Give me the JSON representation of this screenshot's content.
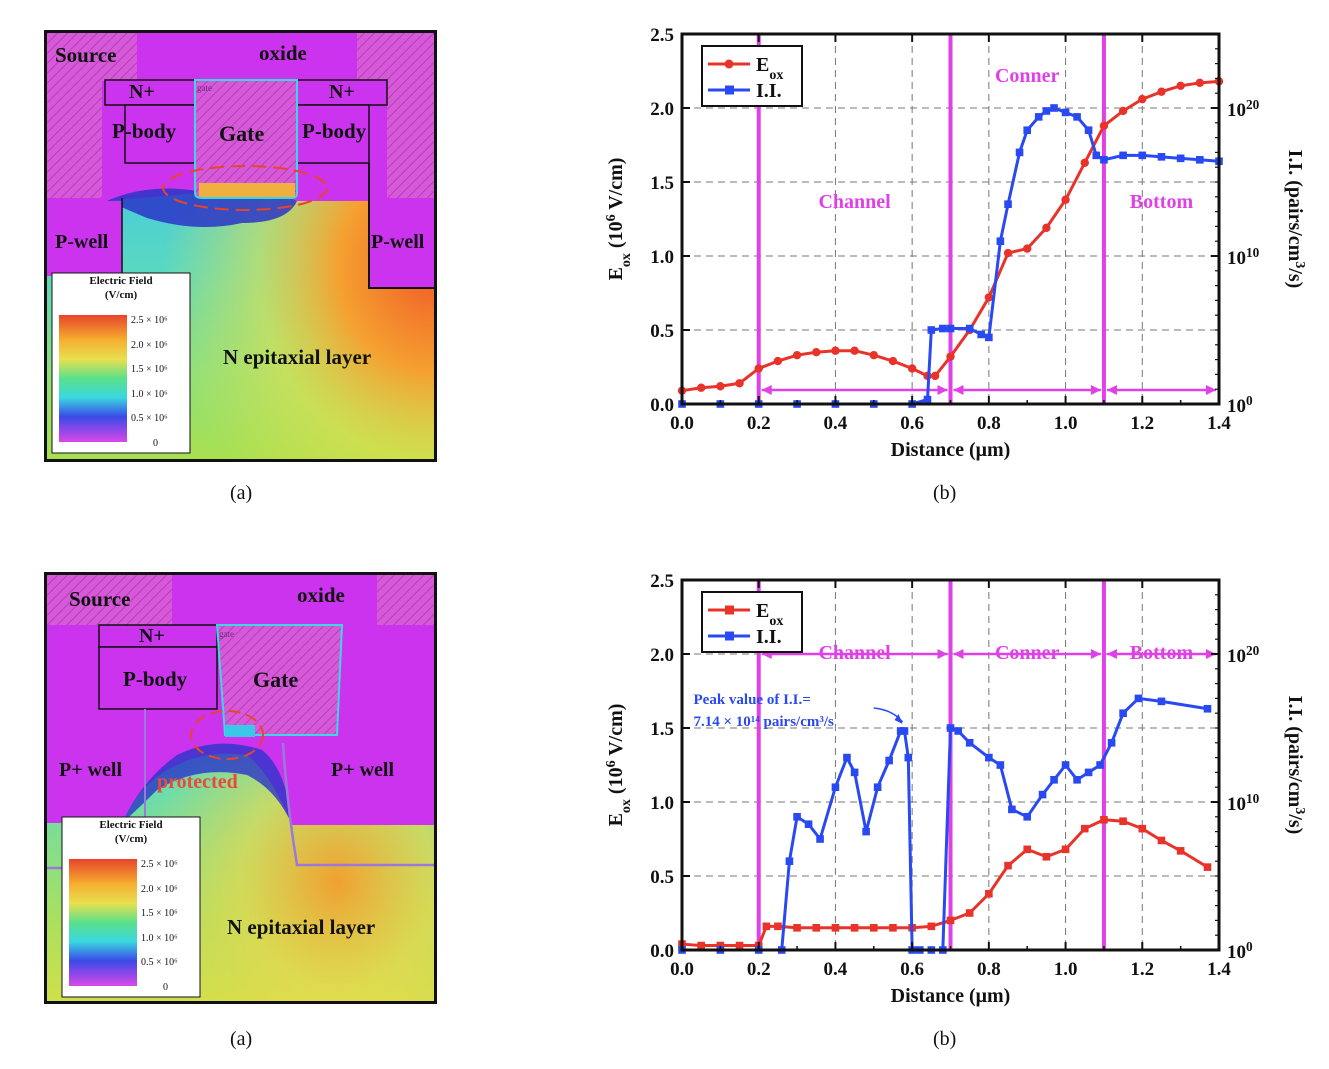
{
  "colors": {
    "red_series": "#e8332a",
    "blue_series": "#2949f2",
    "magenta": "#e040e8",
    "sim_purple": "#cc33ee",
    "protected_text": "#e84a3a"
  },
  "figures": [
    {
      "caption_a": "(a)",
      "caption_b": "(b)",
      "sim": {
        "labels": {
          "source": "Source",
          "oxide": "oxide",
          "n_plus_left": "N+",
          "n_plus_right": "N+",
          "gate_small": "gate",
          "gate": "Gate",
          "p_body_left": "P-body",
          "p_body_right": "P-body",
          "p_well_left": "P-well",
          "p_well_right": "P-well",
          "epi": "N epitaxial layer"
        },
        "legend": {
          "title": "Electric Field",
          "unit": "(V/cm)",
          "ticks": [
            "2.5 × 10⁶",
            "2.0 × 10⁶",
            "1.5 × 10⁶",
            "1.0 × 10⁶",
            "0.5 × 10⁶",
            "0"
          ]
        }
      },
      "annotations": {
        "peak_line1": "",
        "peak_line2": ""
      },
      "regions": {
        "channel": "Channel",
        "corner": "Conner",
        "bottom": "Bottom"
      }
    },
    {
      "caption_a": "(a)",
      "caption_b": "(b)",
      "sim": {
        "labels": {
          "source": "Source",
          "oxide": "oxide",
          "n_plus_left": "N+",
          "gate_small": "gate",
          "gate": "Gate",
          "p_body_left": "P-body",
          "p_well_left": "P+ well",
          "p_well_right": "P+ well",
          "protected": "protected",
          "epi": "N epitaxial layer"
        },
        "legend": {
          "title": "Electric Field",
          "unit": "(V/cm)",
          "ticks": [
            "2.5 × 10⁶",
            "2.0 × 10⁶",
            "1.5 × 10⁶",
            "1.0 × 10⁶",
            "0.5 × 10⁶",
            "0"
          ]
        }
      },
      "annotations": {
        "peak_line1": "Peak value of I.I.=",
        "peak_line2": "7.14 × 10¹⁴ pairs/cm³/s"
      },
      "regions": {
        "channel": "Channel",
        "corner": "Conner",
        "bottom": "Bottom"
      }
    }
  ],
  "chart_data": [
    {
      "type": "line",
      "xlabel": "Distance (μm)",
      "ylabel": "E_ox (10^6 V/cm)",
      "ylabel2": "I.I. (pairs/cm^3/s)",
      "xlim": [
        0,
        1.4
      ],
      "ylim": [
        0,
        2.5
      ],
      "y2lim_log10": [
        0,
        25
      ],
      "x_ticks": [
        "0.0",
        "0.2",
        "0.4",
        "0.6",
        "0.8",
        "1.0",
        "1.2",
        "1.4"
      ],
      "y_ticks": [
        "0.0",
        "0.5",
        "1.0",
        "1.5",
        "2.0",
        "2.5"
      ],
      "y2_ticks": [
        {
          "base": "10",
          "exp": "0",
          "log": 0
        },
        {
          "base": "10",
          "exp": "10",
          "log": 10
        },
        {
          "base": "10",
          "exp": "20",
          "log": 20
        }
      ],
      "grid": true,
      "legend_position": "top-left",
      "region_boundaries": [
        0.2,
        0.7,
        1.1
      ],
      "series": [
        {
          "name": "E_ox",
          "axis": "left",
          "marker": "circle",
          "x": [
            0,
            0.05,
            0.1,
            0.15,
            0.2,
            0.25,
            0.3,
            0.35,
            0.4,
            0.45,
            0.5,
            0.55,
            0.6,
            0.64,
            0.66,
            0.7,
            0.75,
            0.8,
            0.85,
            0.9,
            0.95,
            1.0,
            1.05,
            1.1,
            1.15,
            1.2,
            1.25,
            1.3,
            1.35,
            1.4
          ],
          "y": [
            0.09,
            0.11,
            0.12,
            0.14,
            0.24,
            0.29,
            0.33,
            0.35,
            0.36,
            0.36,
            0.33,
            0.29,
            0.24,
            0.19,
            0.19,
            0.32,
            0.5,
            0.72,
            1.02,
            1.05,
            1.19,
            1.38,
            1.63,
            1.88,
            1.98,
            2.06,
            2.11,
            2.15,
            2.17,
            2.18
          ]
        },
        {
          "name": "I.I.",
          "axis": "right",
          "marker": "square",
          "x": [
            0,
            0.1,
            0.2,
            0.3,
            0.4,
            0.5,
            0.6,
            0.64,
            0.65,
            0.68,
            0.7,
            0.75,
            0.78,
            0.8,
            0.83,
            0.85,
            0.88,
            0.9,
            0.93,
            0.95,
            0.97,
            1.0,
            1.03,
            1.06,
            1.08,
            1.1,
            1.15,
            1.2,
            1.25,
            1.3,
            1.35,
            1.4
          ],
          "y_log10": [
            0,
            0,
            0,
            0,
            0,
            0,
            0,
            0.3,
            5,
            5.1,
            5.1,
            5.1,
            4.7,
            4.5,
            11,
            13.5,
            17,
            18.5,
            19.4,
            19.8,
            20,
            19.7,
            19.4,
            18.5,
            16.8,
            16.5,
            16.8,
            16.8,
            16.7,
            16.6,
            16.5,
            16.4
          ]
        }
      ]
    },
    {
      "type": "line",
      "xlabel": "Distance (μm)",
      "ylabel": "E_ox (10^6 V/cm)",
      "ylabel2": "I.I. (pairs/cm^3/s)",
      "xlim": [
        0,
        1.4
      ],
      "ylim": [
        0,
        2.5
      ],
      "y2lim_log10": [
        0,
        25
      ],
      "x_ticks": [
        "0.0",
        "0.2",
        "0.4",
        "0.6",
        "0.8",
        "1.0",
        "1.2",
        "1.4"
      ],
      "y_ticks": [
        "0.0",
        "0.5",
        "1.0",
        "1.5",
        "2.0",
        "2.5"
      ],
      "y2_ticks": [
        {
          "base": "10",
          "exp": "0",
          "log": 0
        },
        {
          "base": "10",
          "exp": "10",
          "log": 10
        },
        {
          "base": "10",
          "exp": "20",
          "log": 20
        }
      ],
      "grid": true,
      "legend_position": "top-left",
      "region_boundaries": [
        0.2,
        0.7,
        1.1
      ],
      "series": [
        {
          "name": "E_ox",
          "axis": "left",
          "marker": "square",
          "x": [
            0,
            0.05,
            0.1,
            0.15,
            0.2,
            0.22,
            0.25,
            0.3,
            0.35,
            0.4,
            0.45,
            0.5,
            0.55,
            0.6,
            0.65,
            0.7,
            0.75,
            0.8,
            0.85,
            0.9,
            0.95,
            1.0,
            1.05,
            1.1,
            1.15,
            1.2,
            1.25,
            1.3,
            1.37
          ],
          "y": [
            0.04,
            0.03,
            0.03,
            0.03,
            0.03,
            0.16,
            0.16,
            0.15,
            0.15,
            0.15,
            0.15,
            0.15,
            0.15,
            0.15,
            0.16,
            0.2,
            0.25,
            0.38,
            0.57,
            0.68,
            0.63,
            0.68,
            0.82,
            0.88,
            0.87,
            0.82,
            0.74,
            0.67,
            0.56
          ]
        },
        {
          "name": "I.I.",
          "axis": "right",
          "marker": "square",
          "x": [
            0,
            0.1,
            0.2,
            0.26,
            0.28,
            0.3,
            0.33,
            0.36,
            0.4,
            0.43,
            0.45,
            0.48,
            0.51,
            0.54,
            0.57,
            0.58,
            0.59,
            0.6,
            0.62,
            0.65,
            0.68,
            0.7,
            0.72,
            0.75,
            0.8,
            0.83,
            0.86,
            0.9,
            0.94,
            0.97,
            1.0,
            1.03,
            1.06,
            1.09,
            1.12,
            1.15,
            1.19,
            1.25,
            1.37
          ],
          "y_log10": [
            0,
            0,
            0,
            0,
            6,
            9,
            8.5,
            7.5,
            11,
            13,
            12,
            8,
            11,
            12.8,
            14.8,
            14.8,
            13,
            0,
            0,
            0,
            0,
            15,
            14.8,
            14,
            13,
            12.5,
            9.5,
            9,
            10.5,
            11.5,
            12.5,
            11.5,
            12,
            12.5,
            14,
            16,
            17,
            16.8,
            16.3
          ]
        }
      ]
    }
  ]
}
